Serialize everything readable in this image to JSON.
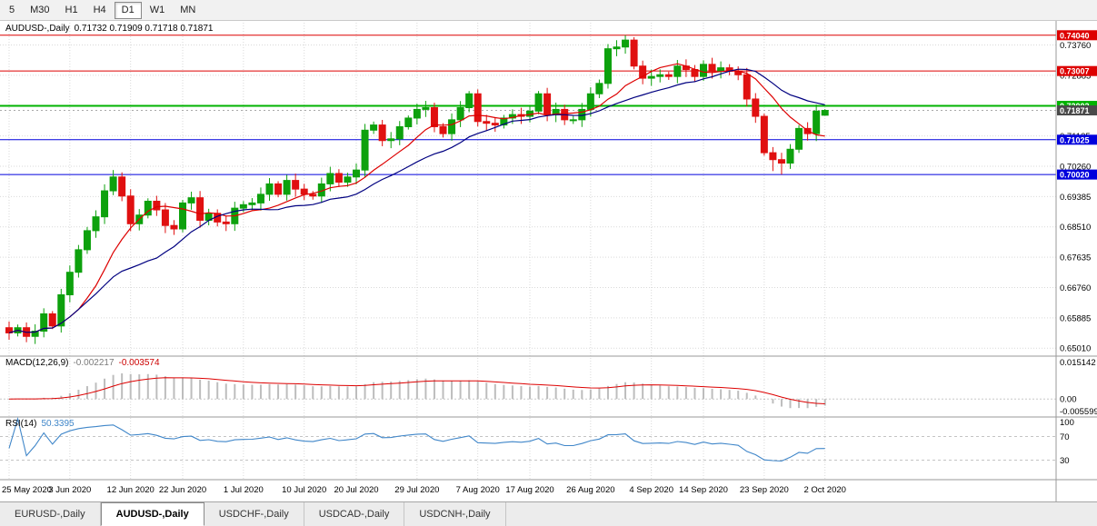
{
  "toolbar": {
    "timeframes": [
      {
        "label": "5",
        "active": false
      },
      {
        "label": "M30",
        "active": false
      },
      {
        "label": "H1",
        "active": false
      },
      {
        "label": "H4",
        "active": false
      },
      {
        "label": "D1",
        "active": true
      },
      {
        "label": "W1",
        "active": false
      },
      {
        "label": "MN",
        "active": false
      }
    ]
  },
  "panes": {
    "main": {
      "title": "AUDUSD-,Daily",
      "ohlc_text": "0.71732 0.71909 0.71718 0.71871"
    },
    "macd": {
      "label": "MACD(12,26,9)",
      "value_main": "-0.002217",
      "value_signal": "-0.003574"
    },
    "rsi": {
      "label": "RSI(14)",
      "value": "50.3395"
    }
  },
  "chart_data": {
    "type": "candlestick",
    "symbol": "AUDUSD-",
    "timeframe": "Daily",
    "last_ohlc": {
      "open": 0.71732,
      "high": 0.71909,
      "low": 0.71718,
      "close": 0.71871
    },
    "price_min": 0.6478,
    "price_max": 0.7448,
    "first_open": 0.656,
    "closes": [
      0.6545,
      0.656,
      0.6535,
      0.655,
      0.66,
      0.6565,
      0.6655,
      0.672,
      0.6785,
      0.684,
      0.688,
      0.6955,
      0.6995,
      0.694,
      0.686,
      0.6885,
      0.6925,
      0.69,
      0.6855,
      0.6845,
      0.692,
      0.6935,
      0.687,
      0.689,
      0.6865,
      0.686,
      0.6905,
      0.6915,
      0.692,
      0.6945,
      0.6975,
      0.6945,
      0.6985,
      0.696,
      0.6945,
      0.694,
      0.6975,
      0.7005,
      0.698,
      0.6995,
      0.7015,
      0.713,
      0.7145,
      0.71,
      0.7105,
      0.714,
      0.7165,
      0.719,
      0.7195,
      0.714,
      0.712,
      0.716,
      0.7195,
      0.7235,
      0.7155,
      0.715,
      0.7145,
      0.7165,
      0.7175,
      0.717,
      0.7185,
      0.7235,
      0.7175,
      0.719,
      0.716,
      0.716,
      0.719,
      0.7235,
      0.7265,
      0.7365,
      0.737,
      0.739,
      0.7315,
      0.728,
      0.7285,
      0.729,
      0.7285,
      0.7315,
      0.7305,
      0.7285,
      0.732,
      0.73,
      0.731,
      0.73,
      0.729,
      0.722,
      0.717,
      0.7065,
      0.7045,
      0.7035,
      0.7075,
      0.7135,
      0.712,
      0.7185,
      0.71871
    ],
    "overrides": {
      "12": {
        "h": 0.7015
      },
      "53": {
        "h": 0.7243
      },
      "71": {
        "h": 0.7404
      },
      "88": {
        "l": 0.7012
      },
      "89": {
        "l": 0.7002
      },
      "94": {
        "o": 0.71732,
        "h": 0.71909,
        "l": 0.71718,
        "c": 0.71871
      }
    },
    "price_axis_ticks": [
      0.7376,
      0.72885,
      0.7201,
      0.71135,
      0.7026,
      0.69385,
      0.6851,
      0.67635,
      0.6676,
      0.65885,
      0.6501
    ],
    "levels": [
      {
        "price": 0.7404,
        "label": "0.74040",
        "color": "#dd0000",
        "width": 1
      },
      {
        "price": 0.73007,
        "label": "0.73007",
        "color": "#dd0000",
        "width": 1
      },
      {
        "price": 0.72002,
        "label": "0.72002",
        "color": "#00b300",
        "width": 2
      },
      {
        "price": 0.71025,
        "label": "0.71025",
        "color": "#0000dd",
        "width": 1
      },
      {
        "price": 0.7002,
        "label": "0.70020",
        "color": "#0000dd",
        "width": 1
      }
    ],
    "current_price": {
      "price": 0.71871,
      "label": "0.71871",
      "box_color": "#4a4a4a"
    },
    "date_labels": [
      {
        "text": "25 May 2020",
        "i": 0
      },
      {
        "text": "3 Jun 2020",
        "i": 7
      },
      {
        "text": "12 Jun 2020",
        "i": 14
      },
      {
        "text": "22 Jun 2020",
        "i": 20
      },
      {
        "text": "1 Jul 2020",
        "i": 27
      },
      {
        "text": "10 Jul 2020",
        "i": 34
      },
      {
        "text": "20 Jul 2020",
        "i": 40
      },
      {
        "text": "29 Jul 2020",
        "i": 47
      },
      {
        "text": "7 Aug 2020",
        "i": 54
      },
      {
        "text": "17 Aug 2020",
        "i": 60
      },
      {
        "text": "26 Aug 2020",
        "i": 67
      },
      {
        "text": "4 Sep 2020",
        "i": 74
      },
      {
        "text": "14 Sep 2020",
        "i": 80
      },
      {
        "text": "23 Sep 2020",
        "i": 87
      },
      {
        "text": "2 Oct 2020",
        "i": 94
      }
    ],
    "macd_axis": {
      "max": 0.0165,
      "min": -0.0065,
      "ticks": [
        {
          "value": 0.015142,
          "label": "0.015142"
        },
        {
          "value": 0,
          "label": "0.00"
        },
        {
          "value": -0.005599,
          "label": "-0.005599"
        }
      ]
    },
    "rsi_axis": {
      "ticks": [
        {
          "value": 100,
          "label": "100"
        },
        {
          "value": 70,
          "label": "70"
        },
        {
          "value": 30,
          "label": "30"
        }
      ],
      "levels": [
        70,
        30
      ]
    },
    "indicators": {
      "ma_fast_period": 9,
      "ma_slow_period": 18,
      "macd": [
        12,
        26,
        9
      ],
      "rsi_period": 14
    },
    "colors": {
      "up": "#0da10d",
      "down": "#e01010",
      "grid": "#d9d9d9",
      "separator": "#9a9a9a",
      "ma_fast": "#dd0000",
      "ma_slow": "#000080",
      "macd_hist": "#bdbdbd",
      "macd_signal": "#dd0000",
      "rsi_line": "#3f86c9",
      "current_line": "#aaaaaa"
    }
  },
  "bottom_tabs": [
    {
      "label": "EURUSD-,Daily",
      "active": false
    },
    {
      "label": "AUDUSD-,Daily",
      "active": true
    },
    {
      "label": "USDCHF-,Daily",
      "active": false
    },
    {
      "label": "USDCAD-,Daily",
      "active": false
    },
    {
      "label": "USDCNH-,Daily",
      "active": false
    }
  ]
}
